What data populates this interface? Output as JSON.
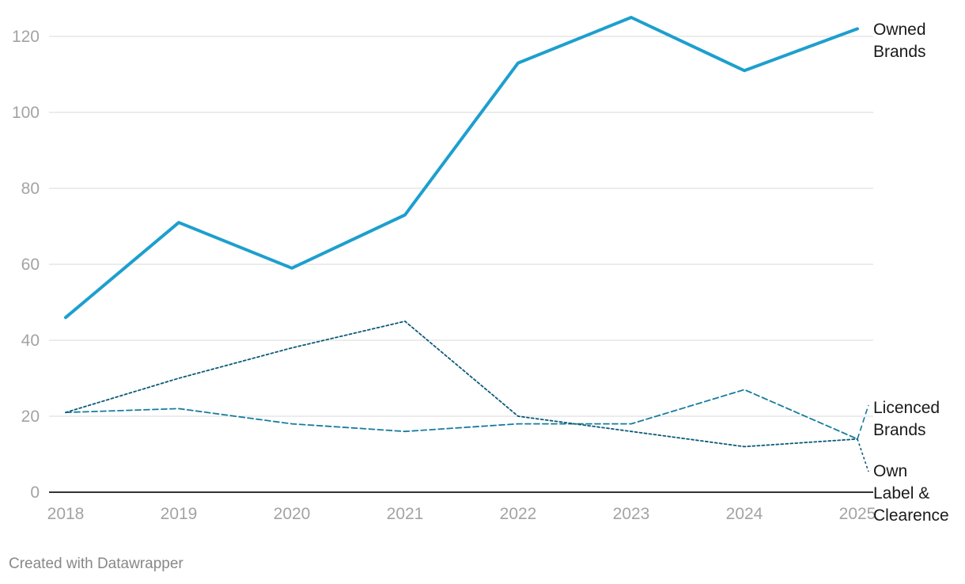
{
  "chart_data": {
    "type": "line",
    "x": [
      "2018",
      "2019",
      "2020",
      "2021",
      "2022",
      "2023",
      "2024",
      "2025"
    ],
    "ylim": [
      0,
      125
    ],
    "yticks": [
      0,
      20,
      40,
      60,
      80,
      100,
      120
    ],
    "grid": true,
    "series": [
      {
        "name": "Owned Brands",
        "label_lines": [
          "Owned",
          "Brands"
        ],
        "values": [
          46,
          71,
          59,
          73,
          113,
          125,
          111,
          122
        ],
        "color": "#1d9fce",
        "style": "solid"
      },
      {
        "name": "Licenced Brands",
        "label_lines": [
          "Licenced",
          "Brands"
        ],
        "values": [
          21,
          22,
          18,
          16,
          18,
          18,
          27,
          14
        ],
        "color": "#157c9e",
        "style": "dashed"
      },
      {
        "name": "Own Label & Clearence",
        "label_lines": [
          "Own",
          "Label &",
          "Clearence"
        ],
        "values": [
          21,
          30,
          38,
          45,
          20,
          16,
          12,
          14
        ],
        "color": "#0c5a78",
        "style": "dotted"
      }
    ]
  },
  "footer": {
    "credit": "Created with Datawrapper"
  },
  "colors": {
    "grid": "#e5e5e5",
    "baseline": "#333333",
    "tick_text": "#a3a3a3",
    "label_text": "#1a1a1a"
  }
}
